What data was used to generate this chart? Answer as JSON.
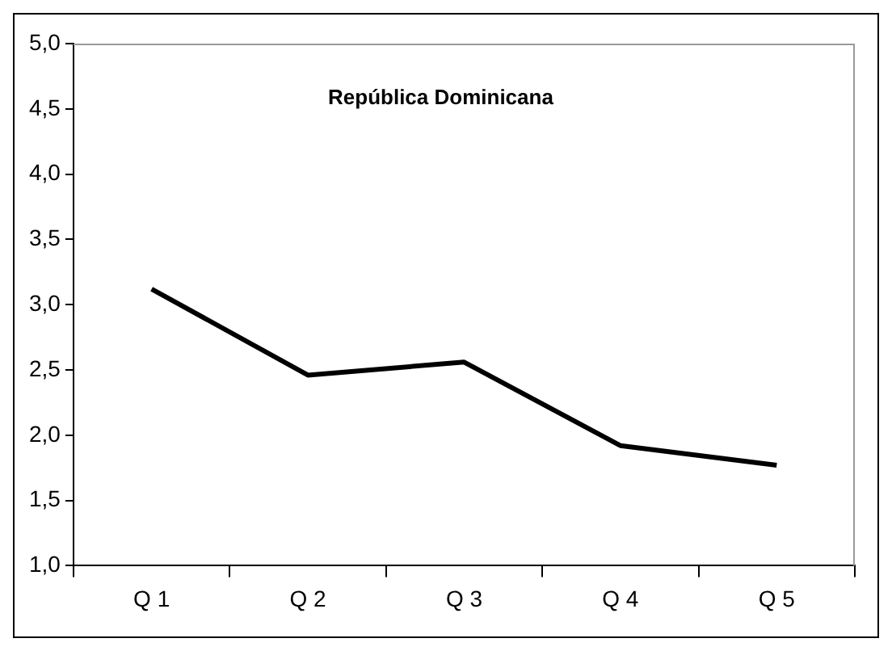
{
  "chart_data": {
    "type": "line",
    "title": "República Dominicana",
    "categories": [
      "Q 1",
      "Q 2",
      "Q 3",
      "Q 4",
      "Q 5"
    ],
    "series": [
      {
        "color": "#000000",
        "values": [
          3.12,
          2.46,
          2.56,
          1.92,
          1.77
        ]
      }
    ],
    "ylim": [
      1,
      5
    ],
    "yticks": [
      {
        "value": 1,
        "label": "1,0"
      },
      {
        "value": 1.5,
        "label": "1,5"
      },
      {
        "value": 2,
        "label": "2,0"
      },
      {
        "value": 2.5,
        "label": "2,5"
      },
      {
        "value": 3,
        "label": "3,0"
      },
      {
        "value": 3.5,
        "label": "3,5"
      },
      {
        "value": 4,
        "label": "4,0"
      },
      {
        "value": 4.5,
        "label": "4,5"
      },
      {
        "value": 5,
        "label": "5,0"
      }
    ],
    "grid": false,
    "legend": false,
    "marker": "none",
    "line_style": "solid"
  }
}
